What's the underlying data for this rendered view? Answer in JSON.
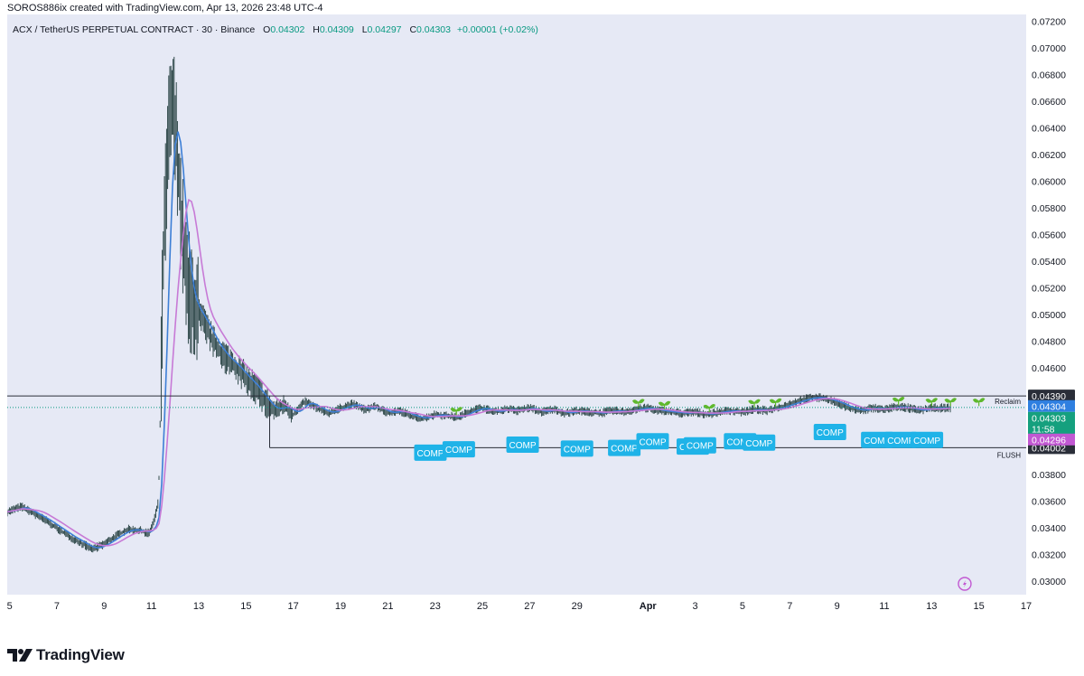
{
  "header": {
    "attribution": "SOROS886ix created with TradingView.com, Apr 13, 2026 23:48 UTC-4"
  },
  "legend": {
    "symbol": "ACX / TetherUS PERPETUAL CONTRACT · 30 · Binance",
    "open_label": "O",
    "open": "0.04302",
    "high_label": "H",
    "high": "0.04309",
    "low_label": "L",
    "low": "0.04297",
    "close_label": "C",
    "close": "0.04303",
    "change": "+0.00001 (+0.02%)"
  },
  "footer": {
    "brand": "TradingView"
  },
  "colors": {
    "background": "#e6e9f5",
    "candle": "#1e3a3a",
    "ma_fast": "#3d7fd6",
    "ma_slow": "#c77ad6",
    "badge": "#1fb3e8",
    "sprout": "#5fb82e",
    "axis_box_dark": "#2a2e39",
    "axis_box_blue": "#2f7fe0",
    "axis_box_green": "#15a07e",
    "axis_box_purple": "#c158d2"
  },
  "chart_data": {
    "type": "line",
    "ylim": [
      0.029,
      0.0725
    ],
    "y_ticks": [
      "0.03000",
      "0.03200",
      "0.03400",
      "0.03600",
      "0.03800",
      "0.04000",
      "0.04200",
      "0.04400",
      "0.04600",
      "0.04800",
      "0.05000",
      "0.05200",
      "0.05400",
      "0.05600",
      "0.05800",
      "0.06000",
      "0.06200",
      "0.06400",
      "0.06600",
      "0.06800",
      "0.07000",
      "0.07200"
    ],
    "x_ticks": [
      {
        "label": "5",
        "day": 5
      },
      {
        "label": "7",
        "day": 7
      },
      {
        "label": "9",
        "day": 9
      },
      {
        "label": "11",
        "day": 11
      },
      {
        "label": "13",
        "day": 13
      },
      {
        "label": "15",
        "day": 15
      },
      {
        "label": "17",
        "day": 17
      },
      {
        "label": "19",
        "day": 19
      },
      {
        "label": "21",
        "day": 21
      },
      {
        "label": "23",
        "day": 23
      },
      {
        "label": "25",
        "day": 25
      },
      {
        "label": "27",
        "day": 27
      },
      {
        "label": "29",
        "day": 29
      },
      {
        "label": "Apr",
        "day": 32
      },
      {
        "label": "3",
        "day": 34
      },
      {
        "label": "5",
        "day": 36
      },
      {
        "label": "7",
        "day": 38
      },
      {
        "label": "9",
        "day": 40
      },
      {
        "label": "11",
        "day": 42
      },
      {
        "label": "13",
        "day": 44
      },
      {
        "label": "15",
        "day": 46
      },
      {
        "label": "17",
        "day": 48
      }
    ],
    "x_range": [
      4.9,
      48.0
    ],
    "price_series": [
      [
        4.9,
        0.0352
      ],
      [
        5.5,
        0.0356
      ],
      [
        6.0,
        0.0351
      ],
      [
        6.5,
        0.0346
      ],
      [
        7.0,
        0.034
      ],
      [
        7.5,
        0.0334
      ],
      [
        8.0,
        0.0329
      ],
      [
        8.5,
        0.0324
      ],
      [
        9.0,
        0.0328
      ],
      [
        9.5,
        0.0334
      ],
      [
        10.0,
        0.0339
      ],
      [
        10.5,
        0.0338
      ],
      [
        10.9,
        0.0336
      ],
      [
        11.1,
        0.0345
      ],
      [
        11.3,
        0.036
      ],
      [
        11.5,
        0.054
      ],
      [
        11.7,
        0.063
      ],
      [
        11.9,
        0.066
      ],
      [
        12.1,
        0.062
      ],
      [
        12.3,
        0.056
      ],
      [
        12.5,
        0.052
      ],
      [
        12.8,
        0.0505
      ],
      [
        13.2,
        0.0495
      ],
      [
        13.6,
        0.048
      ],
      [
        14.0,
        0.047
      ],
      [
        14.5,
        0.0462
      ],
      [
        15.0,
        0.0452
      ],
      [
        15.4,
        0.0445
      ],
      [
        15.8,
        0.0435
      ],
      [
        16.2,
        0.0428
      ],
      [
        16.6,
        0.0432
      ],
      [
        17.0,
        0.0425
      ],
      [
        17.5,
        0.0435
      ],
      [
        18.0,
        0.043
      ],
      [
        18.5,
        0.0426
      ],
      [
        19.0,
        0.043
      ],
      [
        19.5,
        0.0433
      ],
      [
        20.0,
        0.0429
      ],
      [
        20.5,
        0.0431
      ],
      [
        21.0,
        0.0426
      ],
      [
        21.5,
        0.0428
      ],
      [
        22.0,
        0.0424
      ],
      [
        22.5,
        0.0422
      ],
      [
        23.0,
        0.0425
      ],
      [
        23.5,
        0.0424
      ],
      [
        24.0,
        0.0423
      ],
      [
        24.5,
        0.0428
      ],
      [
        25.0,
        0.043
      ],
      [
        25.5,
        0.0427
      ],
      [
        26.0,
        0.0429
      ],
      [
        26.5,
        0.0428
      ],
      [
        27.0,
        0.043
      ],
      [
        27.5,
        0.0427
      ],
      [
        28.0,
        0.0429
      ],
      [
        28.5,
        0.0426
      ],
      [
        29.0,
        0.0428
      ],
      [
        29.5,
        0.0427
      ],
      [
        30.0,
        0.0426
      ],
      [
        30.5,
        0.0428
      ],
      [
        31.0,
        0.0427
      ],
      [
        31.5,
        0.0429
      ],
      [
        32.0,
        0.043
      ],
      [
        32.5,
        0.0428
      ],
      [
        33.0,
        0.0427
      ],
      [
        33.5,
        0.0426
      ],
      [
        34.0,
        0.0427
      ],
      [
        34.5,
        0.0425
      ],
      [
        35.0,
        0.0427
      ],
      [
        35.5,
        0.0428
      ],
      [
        36.0,
        0.0427
      ],
      [
        36.5,
        0.0429
      ],
      [
        37.0,
        0.0428
      ],
      [
        37.5,
        0.043
      ],
      [
        38.0,
        0.0433
      ],
      [
        38.5,
        0.0436
      ],
      [
        39.0,
        0.0438
      ],
      [
        39.5,
        0.0437
      ],
      [
        40.0,
        0.0434
      ],
      [
        40.5,
        0.043
      ],
      [
        41.0,
        0.0428
      ],
      [
        41.5,
        0.043
      ],
      [
        42.0,
        0.0429
      ],
      [
        42.5,
        0.0431
      ],
      [
        43.0,
        0.043
      ],
      [
        43.5,
        0.0428
      ],
      [
        44.0,
        0.043
      ],
      [
        44.5,
        0.043
      ],
      [
        44.8,
        0.043
      ]
    ],
    "levels": [
      {
        "name": "Reclaim",
        "price": 0.0439,
        "label": "0.04390"
      },
      {
        "name": "FLUSH",
        "price": 0.04002,
        "label": "0.04002"
      }
    ],
    "price_boxes": [
      {
        "label": "0.04304",
        "price": 0.04304,
        "role": "ma_fast"
      },
      {
        "label": "0.04303",
        "price": 0.04303,
        "role": "last"
      },
      {
        "label": "11:58",
        "price": 0.04303,
        "role": "countdown"
      },
      {
        "label": "0.04296",
        "price": 0.04296,
        "role": "ma_slow"
      }
    ],
    "annotation_text": "COMP",
    "annotations": [
      {
        "day": 22.8,
        "price": 0.03965
      },
      {
        "day": 24.0,
        "price": 0.0399
      },
      {
        "day": 26.7,
        "price": 0.04025
      },
      {
        "day": 29.0,
        "price": 0.03995
      },
      {
        "day": 31.0,
        "price": 0.04
      },
      {
        "day": 32.2,
        "price": 0.0405
      },
      {
        "day": 33.9,
        "price": 0.0401
      },
      {
        "day": 34.2,
        "price": 0.0402
      },
      {
        "day": 35.9,
        "price": 0.0405
      },
      {
        "day": 36.7,
        "price": 0.0404
      },
      {
        "day": 39.7,
        "price": 0.0412
      },
      {
        "day": 41.7,
        "price": 0.0406
      },
      {
        "day": 42.7,
        "price": 0.0406
      },
      {
        "day": 43.8,
        "price": 0.0406
      }
    ],
    "sprouts": [
      23.9,
      31.6,
      32.7,
      34.6,
      36.5,
      37.4,
      42.6,
      44.0,
      44.8,
      46.0
    ]
  }
}
